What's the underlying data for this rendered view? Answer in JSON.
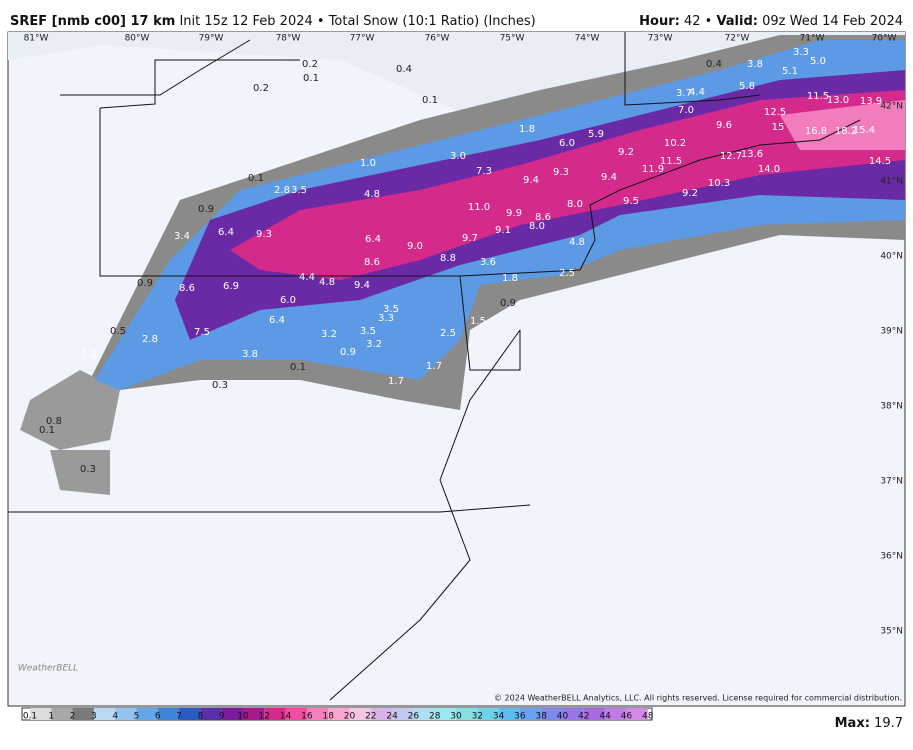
{
  "header": {
    "model": "SREF [nmb c00] 17 km",
    "description": " Init 15z 12 Feb 2024 • Total Snow (10:1 Ratio) (Inches)",
    "hour_label": "Hour:",
    "hour": " 42 • ",
    "valid_label": "Valid:",
    "valid": " 09z Wed 14 Feb 2024"
  },
  "lon_labels": [
    "81°W",
    "80°W",
    "79°W",
    "78°W",
    "77°W",
    "76°W",
    "75°W",
    "74°W",
    "73°W",
    "72°W",
    "71°W",
    "70°W"
  ],
  "lat_labels": [
    "42°N",
    "41°N",
    "40°N",
    "39°N",
    "38°N",
    "37°N",
    "36°N",
    "35°N"
  ],
  "points": [
    "0.2",
    "0.1",
    "0.4",
    "0.2",
    "0.1",
    "0.1",
    "2.8",
    "3.5",
    "0.9",
    "3.4",
    "6.4",
    "9.3",
    "1.0",
    "3.0",
    "1.8",
    "6.0",
    "5.9",
    "7.3",
    "4.8",
    "9.4",
    "9.3",
    "9.2",
    "9.4",
    "8.0",
    "9.5",
    "11.0",
    "9.9",
    "8.6",
    "8.0",
    "9.1",
    "9.7",
    "9.0",
    "6.4",
    "8.6",
    "8.8",
    "3.6",
    "1.8",
    "4.8",
    "2.5",
    "0.9",
    "8.6",
    "6.9",
    "4.4",
    "4.8",
    "9.4",
    "6.0",
    "6.4",
    "7.5",
    "0.5",
    "2.8",
    "1.2",
    "3.8",
    "0.1",
    "0.3",
    "3.2",
    "3.5",
    "3.3",
    "3.5",
    "3.2",
    "0.9",
    "1.5",
    "2.5",
    "0.9",
    "1.7",
    "1.7",
    "0.1",
    "0.8",
    "0.3",
    "0.4",
    "3.8",
    "3.3",
    "5.1",
    "5.0",
    "5.8",
    "3.7",
    "4.4",
    "7.0",
    "9.6",
    "12.5",
    "11.5",
    "13.0",
    "13.9",
    "16.8",
    "18.2",
    "15.4",
    "15",
    "10.2",
    "11.5",
    "11.9",
    "12.7",
    "13.6",
    "10.3",
    "9.2",
    "14.0",
    "14.5"
  ],
  "colorbar": {
    "labels": [
      0.1,
      1,
      2,
      3,
      4,
      5,
      6,
      7,
      8,
      9,
      10,
      12,
      14,
      16,
      18,
      20,
      22,
      24,
      26,
      28,
      30,
      32,
      34,
      36,
      38,
      40,
      42,
      44,
      46,
      48
    ],
    "colors": [
      "#dcdcdc",
      "#a8a8a8",
      "#7a7a7a",
      "#bcd8f5",
      "#92c2f0",
      "#64a6e8",
      "#3e84da",
      "#2a5cc2",
      "#5a2fa8",
      "#7a1c9c",
      "#a8188e",
      "#d62a8a",
      "#f04ca0",
      "#f77ebd",
      "#fba6d0",
      "#f2c6e4",
      "#d8b4e6",
      "#c2c8ef",
      "#aee0f0",
      "#9ae8ec",
      "#86dfe0",
      "#70d4e8",
      "#5fbcf2",
      "#6aa0f0",
      "#7f88ec",
      "#9676e6",
      "#aa6ae2",
      "#c07ae6",
      "#d28ae8"
    ]
  },
  "max_label": "Max:",
  "max_value": " 19.7",
  "copyright": "© 2024 WeatherBELL Analytics, LLC. All rights reserved. License required for commercial distribution.",
  "logo": "WeatherBELL"
}
